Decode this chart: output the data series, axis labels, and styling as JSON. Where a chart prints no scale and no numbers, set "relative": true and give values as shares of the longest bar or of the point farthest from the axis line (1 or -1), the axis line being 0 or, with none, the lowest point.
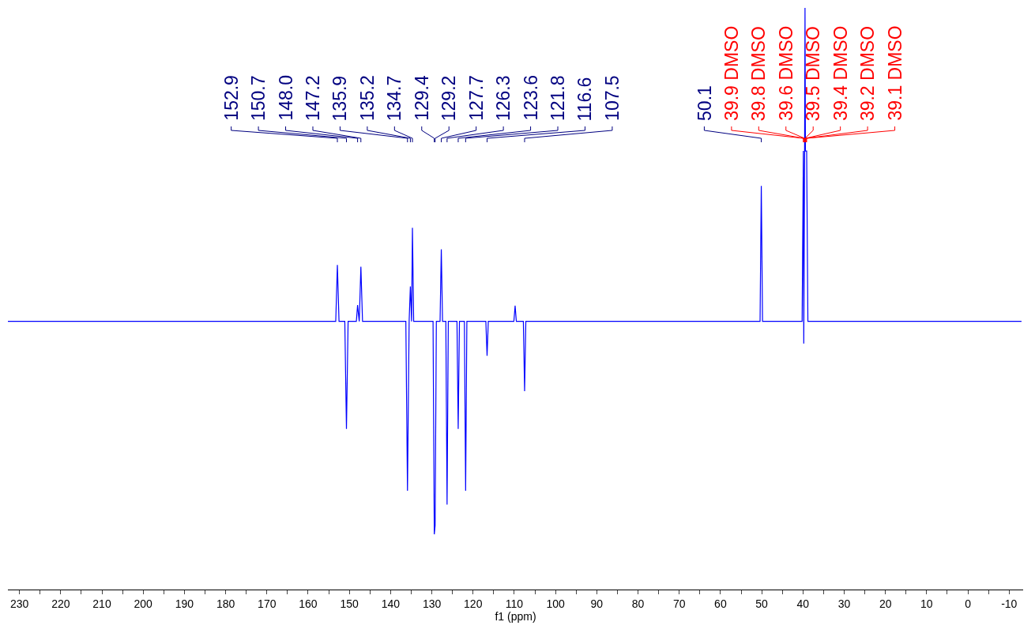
{
  "chart_data": {
    "type": "line",
    "relative": true,
    "xlabel": "f1 (ppm)",
    "x": [
      232.8,
      153.3,
      152.9,
      152.5,
      151.1,
      150.7,
      150.3,
      148.3,
      148.0,
      147.6,
      147.2,
      146.8,
      136.3,
      135.9,
      135.5,
      135.2,
      134.9,
      134.7,
      134.4,
      129.7,
      129.4,
      129.2,
      128.9,
      128.0,
      127.7,
      127.4,
      126.6,
      126.3,
      126.0,
      123.9,
      123.6,
      123.3,
      122.1,
      121.8,
      121.5,
      116.9,
      116.6,
      116.3,
      110.1,
      109.8,
      109.5,
      107.8,
      107.5,
      107.2,
      50.4,
      50.1,
      49.8,
      40.2,
      39.9,
      39.8,
      39.6,
      39.5,
      39.4,
      39.2,
      39.1,
      38.8,
      -13
    ],
    "series": [
      {
        "color": "#0000ff",
        "values": [
          0.461,
          0.461,
          0.558,
          0.461,
          0.461,
          0.276,
          0.461,
          0.461,
          0.489,
          0.461,
          0.555,
          0.461,
          0.461,
          0.17,
          0.461,
          0.521,
          0.461,
          0.622,
          0.461,
          0.461,
          0.095,
          0.11,
          0.461,
          0.461,
          0.585,
          0.461,
          0.461,
          0.146,
          0.461,
          0.461,
          0.276,
          0.461,
          0.461,
          0.17,
          0.461,
          0.461,
          0.402,
          0.461,
          0.461,
          0.488,
          0.461,
          0.461,
          0.341,
          0.461,
          0.461,
          0.694,
          0.461,
          0.461,
          0.754,
          0.423,
          0.754,
          1.0,
          0.754,
          0.754,
          0.754,
          0.461,
          0.461
        ]
      }
    ],
    "xlim": [
      232.8,
      -13.4
    ],
    "xticks": [
      230,
      {
        "value": 225,
        "label": null
      },
      220,
      {
        "value": 215,
        "label": null
      },
      210,
      {
        "value": 205,
        "label": null
      },
      200,
      {
        "value": 195,
        "label": null
      },
      190,
      {
        "value": 185,
        "label": null
      },
      180,
      {
        "value": 175,
        "label": null
      },
      170,
      {
        "value": 165,
        "label": null
      },
      160,
      {
        "value": 155,
        "label": null
      },
      150,
      {
        "value": 145,
        "label": null
      },
      140,
      {
        "value": 135,
        "label": null
      },
      130,
      {
        "value": 125,
        "label": null
      },
      120,
      {
        "value": 115,
        "label": null
      },
      110,
      {
        "value": 105,
        "label": null
      },
      100,
      {
        "value": 95,
        "label": null
      },
      90,
      {
        "value": 85,
        "label": null
      },
      80,
      {
        "value": 75,
        "label": null
      },
      70,
      {
        "value": 65,
        "label": null
      },
      60,
      {
        "value": 55,
        "label": null
      },
      50,
      {
        "value": 45,
        "label": null
      },
      40,
      {
        "value": 35,
        "label": null
      },
      30,
      {
        "value": 25,
        "label": null
      },
      20,
      {
        "value": 15,
        "label": null
      },
      10,
      {
        "value": 5,
        "label": null
      },
      0,
      {
        "value": -5,
        "label": null
      },
      -10
    ],
    "grid": false,
    "legend": false,
    "marker": "none",
    "line_style": "solid",
    "tick_labels": "x",
    "annotations": [
      {
        "text": "152.9",
        "x": 152.9
      },
      {
        "text": "150.7",
        "x": 150.7
      },
      {
        "text": "148.0",
        "x": 148.0
      },
      {
        "text": "147.2",
        "x": 147.2
      },
      {
        "text": "135.9",
        "x": 135.9
      },
      {
        "text": "135.2",
        "x": 135.2
      },
      {
        "text": "134.7",
        "x": 134.7
      },
      {
        "text": "129.4",
        "x": 129.4
      },
      {
        "text": "129.2",
        "x": 129.2
      },
      {
        "text": "127.7",
        "x": 127.7
      },
      {
        "text": "126.3",
        "x": 126.3
      },
      {
        "text": "123.6",
        "x": 123.6
      },
      {
        "text": "121.8",
        "x": 121.8
      },
      {
        "text": "116.6",
        "x": 116.6
      },
      {
        "text": "107.5",
        "x": 107.5
      },
      {
        "text": "50.1",
        "x": 50.1
      },
      {
        "text": "39.9 DMSO",
        "x": 39.9
      },
      {
        "text": "39.8 DMSO",
        "x": 39.8
      },
      {
        "text": "39.6 DMSO",
        "x": 39.6
      },
      {
        "text": "39.5 DMSO",
        "x": 39.5
      },
      {
        "text": "39.4 DMSO",
        "x": 39.4
      },
      {
        "text": "39.2 DMSO",
        "x": 39.2
      },
      {
        "text": "39.1 DMSO",
        "x": 39.1
      }
    ]
  }
}
